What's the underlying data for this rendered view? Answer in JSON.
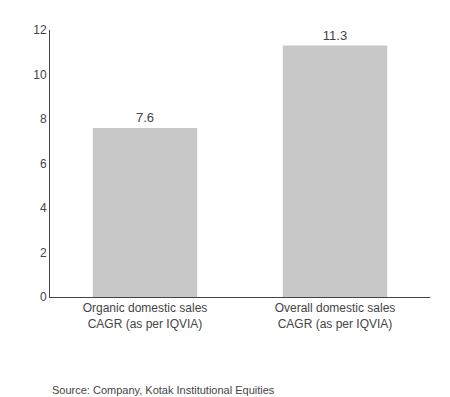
{
  "chart_data": {
    "type": "bar",
    "categories": [
      "Organic domestic sales\nCAGR (as per IQVIA)",
      "Overall domestic sales\nCAGR (as per IQVIA)"
    ],
    "values": [
      7.6,
      11.3
    ],
    "color": "#c8c8c8",
    "ylim": [
      0,
      12
    ],
    "yticks": [
      0,
      2,
      4,
      6,
      8,
      10,
      12
    ],
    "data_labels": true,
    "grid": false,
    "annotations": [
      "Source: Company, Kotak Institutional Equities"
    ]
  }
}
